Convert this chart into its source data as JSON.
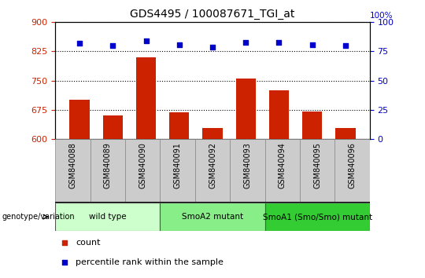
{
  "title": "GDS4495 / 100087671_TGI_at",
  "samples": [
    "GSM840088",
    "GSM840089",
    "GSM840090",
    "GSM840091",
    "GSM840092",
    "GSM840093",
    "GSM840094",
    "GSM840095",
    "GSM840096"
  ],
  "counts": [
    700,
    660,
    810,
    668,
    628,
    755,
    725,
    670,
    628
  ],
  "percentiles": [
    82,
    80,
    84,
    81,
    79,
    83,
    83,
    81,
    80
  ],
  "ylim_left": [
    600,
    900
  ],
  "ylim_right": [
    0,
    100
  ],
  "yticks_left": [
    600,
    675,
    750,
    825,
    900
  ],
  "yticks_right": [
    0,
    25,
    50,
    75,
    100
  ],
  "groups": [
    {
      "label": "wild type",
      "start": 0,
      "end": 3,
      "color": "#ccffcc"
    },
    {
      "label": "SmoA2 mutant",
      "start": 3,
      "end": 6,
      "color": "#88ee88"
    },
    {
      "label": "SmoA1 (Smo/Smo) mutant",
      "start": 6,
      "end": 9,
      "color": "#33cc33"
    }
  ],
  "bar_color": "#cc2200",
  "dot_color": "#0000cc",
  "bar_width": 0.6,
  "grid_color": "black",
  "grid_style": "dotted",
  "legend_count_color": "#cc2200",
  "legend_dot_color": "#0000cc",
  "background_color": "#ffffff",
  "sample_box_color": "#cccccc",
  "sample_box_edge": "#888888",
  "right_axis_label_100": "100%"
}
